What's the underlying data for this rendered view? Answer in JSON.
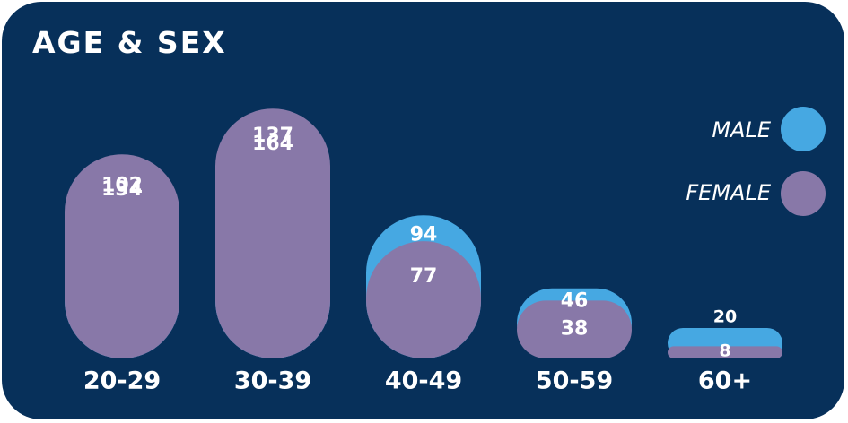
{
  "title": "AGE & SEX",
  "colors": {
    "background": "#07305a",
    "male": "#46a8e2",
    "female": "#8878a8",
    "text": "#ffffff"
  },
  "legend": {
    "male": "MALE",
    "female": "FEMALE"
  },
  "chart_data": {
    "type": "bar",
    "title": "AGE & SEX",
    "categories": [
      "20-29",
      "30-39",
      "40-49",
      "50-59",
      "60+"
    ],
    "series": [
      {
        "name": "MALE",
        "values": [
          102,
          137,
          94,
          46,
          20
        ]
      },
      {
        "name": "FEMALE",
        "values": [
          134,
          164,
          77,
          38,
          8
        ]
      }
    ],
    "legend_position": "right",
    "grid": false,
    "axis_visible": false
  }
}
